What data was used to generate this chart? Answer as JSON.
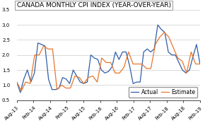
{
  "title": "CANADA MONTHLY CPI INDEX (YEAR-OVER-YEAR)",
  "x_labels": [
    "Aug-13",
    "Feb-14",
    "Aug-14",
    "Feb-15",
    "Aug-15",
    "Feb-16",
    "Aug-16",
    "Feb-17",
    "Aug-17",
    "Feb-18",
    "Aug-18",
    "Feb-19"
  ],
  "actual": [
    1.1,
    0.75,
    1.2,
    1.5,
    1.1,
    1.4,
    2.4,
    2.35,
    2.3,
    1.2,
    0.85,
    0.85,
    0.9,
    1.25,
    1.2,
    1.05,
    1.5,
    1.3,
    1.1,
    1.05,
    1.1,
    2.0,
    1.9,
    1.85,
    1.5,
    1.4,
    1.45,
    1.6,
    2.1,
    1.85,
    2.1,
    2.1,
    1.65,
    1.05,
    1.1,
    1.1,
    2.1,
    2.2,
    2.1,
    2.2,
    3.0,
    2.85,
    2.75,
    2.1,
    2.0,
    2.0,
    1.75,
    1.5,
    1.4,
    1.5,
    1.95,
    2.35,
    1.7
  ],
  "estimate": [
    1.1,
    0.8,
    1.1,
    1.05,
    2.0,
    2.0,
    2.3,
    2.2,
    2.2,
    0.85,
    1.0,
    0.9,
    0.9,
    1.3,
    1.25,
    1.05,
    1.25,
    1.3,
    1.1,
    1.9,
    1.75,
    1.75,
    1.4,
    1.4,
    1.6,
    2.1,
    1.7,
    1.7,
    1.7,
    1.55,
    1.55,
    2.35,
    2.6,
    2.75,
    2.6,
    2.25,
    1.9,
    1.8,
    1.4,
    2.1,
    1.7,
    1.7
  ],
  "actual_color": "#2E5EA8",
  "estimate_color": "#E8762B",
  "ylim": [
    0.5,
    3.5
  ],
  "yticks": [
    0.5,
    1.0,
    1.5,
    2.0,
    2.5,
    3.0,
    3.5
  ],
  "background_color": "#FFFFFF",
  "grid_color": "#CCCCCC",
  "title_fontsize": 6.5,
  "tick_fontsize": 5.0,
  "legend_fontsize": 5.5
}
